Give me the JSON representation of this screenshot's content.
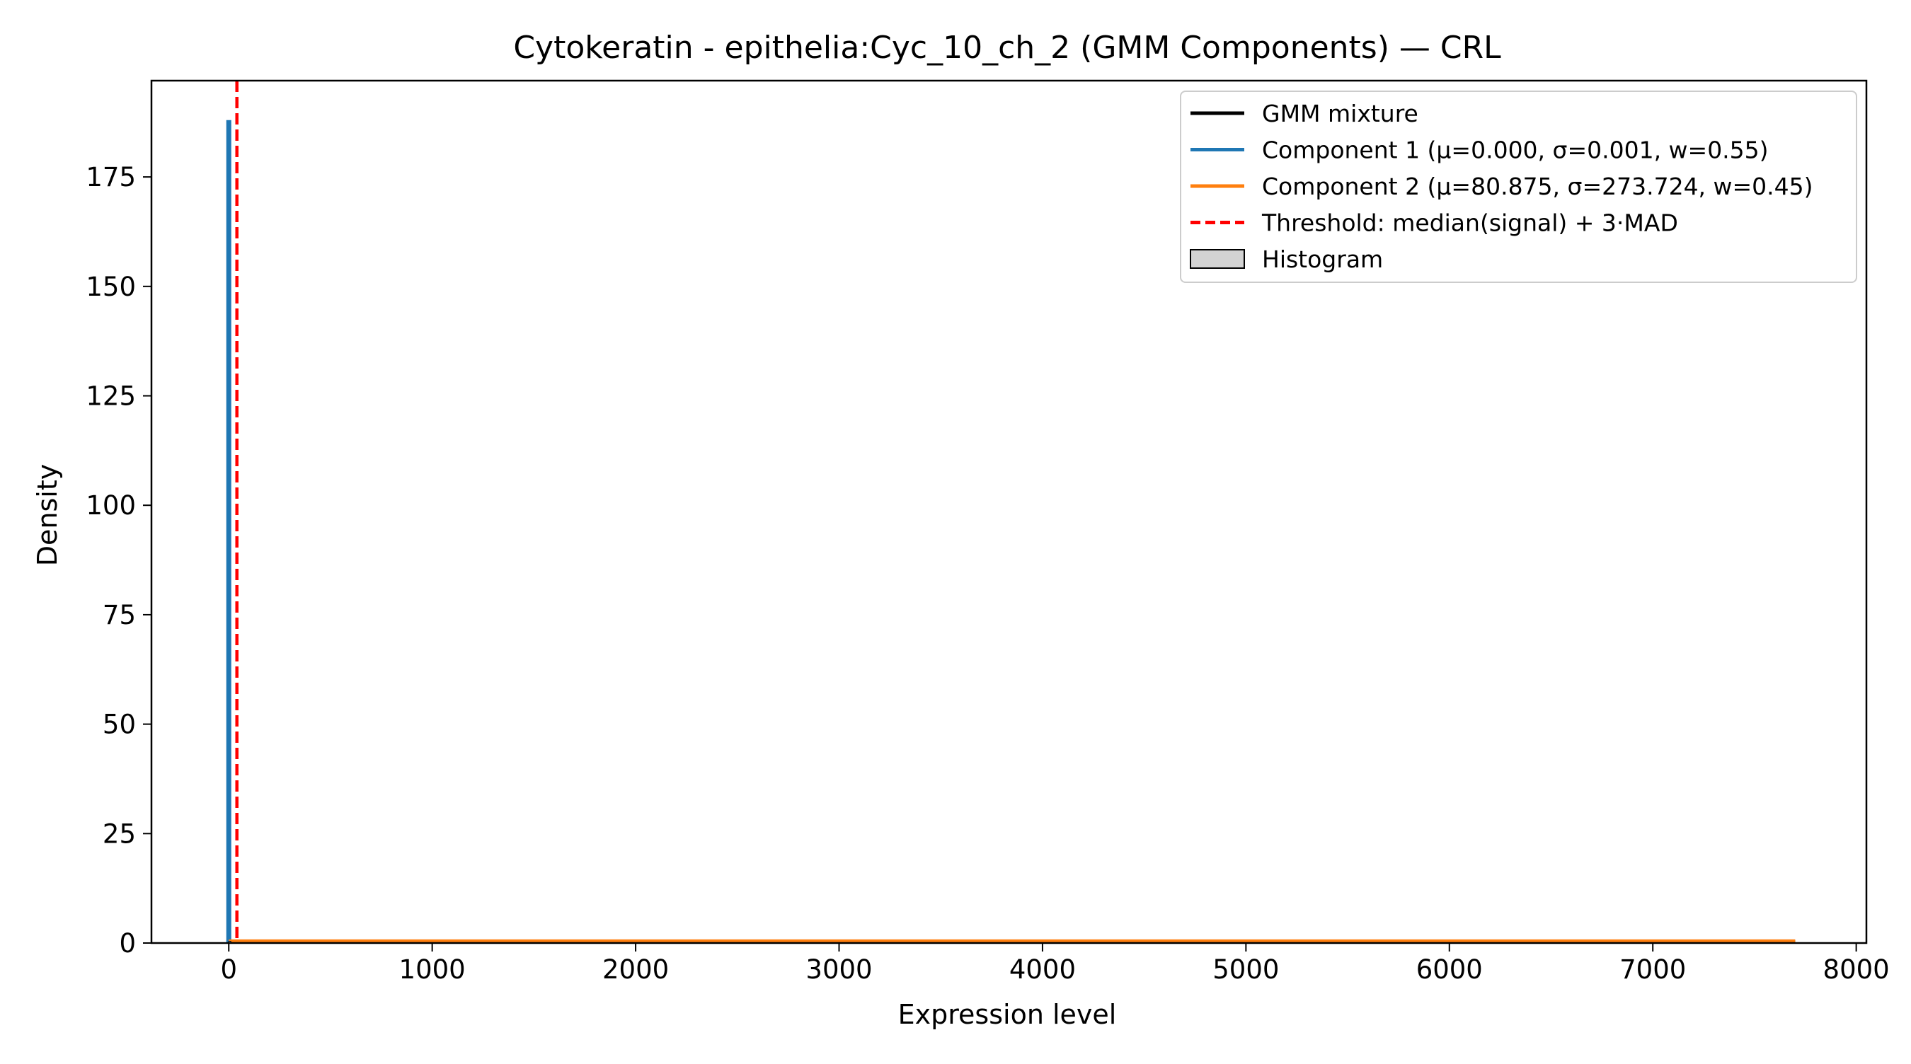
{
  "chart_data": {
    "type": "line",
    "title": "Cytokeratin - epithelia:Cyc_10_ch_2 (GMM Components) — CRL",
    "xlabel": "Expression level",
    "ylabel": "Density",
    "xlim": [
      -380,
      8050
    ],
    "ylim": [
      0,
      197
    ],
    "xticks": [
      0,
      1000,
      2000,
      3000,
      4000,
      5000,
      6000,
      7000,
      8000
    ],
    "yticks": [
      0,
      25,
      50,
      75,
      100,
      125,
      150,
      175
    ],
    "xtick_labels": [
      "0",
      "1000",
      "2000",
      "3000",
      "4000",
      "5000",
      "6000",
      "7000",
      "8000"
    ],
    "ytick_labels": [
      "0",
      "25",
      "50",
      "75",
      "100",
      "125",
      "150",
      "175"
    ],
    "grid": false,
    "legend_position": "top-right",
    "series": [
      {
        "name": "GMM mixture",
        "color": "#000000",
        "style": "solid",
        "x": [
          0,
          7700
        ],
        "y": [
          0.3,
          0.3
        ]
      },
      {
        "name": "Component 1 (μ=0.000, σ=0.001, w=0.55)",
        "color": "#1f77b4",
        "style": "solid",
        "x": [
          0,
          0
        ],
        "y": [
          0,
          188
        ]
      },
      {
        "name": "Component 2 (μ=80.875, σ=273.724, w=0.45)",
        "color": "#ff7f0e",
        "style": "solid",
        "x": [
          0,
          7700
        ],
        "y": [
          0.5,
          0.5
        ]
      },
      {
        "name": "Threshold: median(signal) + 3·MAD",
        "color": "#ff0000",
        "style": "dashed",
        "vline": 40
      },
      {
        "name": "Histogram",
        "color": "#d3d3d3",
        "style": "patch",
        "bins": [
          {
            "x0": 0,
            "x1": 10,
            "y": 0.4
          }
        ]
      }
    ]
  }
}
